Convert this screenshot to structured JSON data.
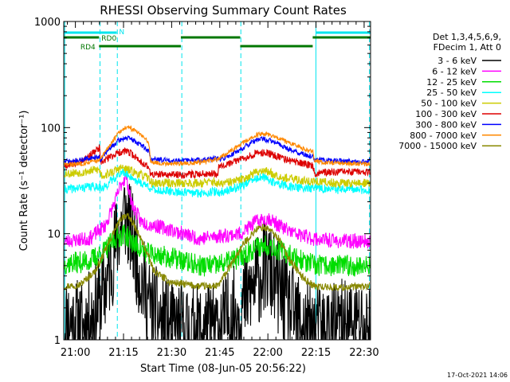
{
  "chart_data": {
    "type": "line",
    "title": "RHESSI Observing Summary Count Rates",
    "xlabel": "Start Time (08-Jun-05 20:56:22)",
    "ylabel": "Count Rate (s⁻¹ detector⁻¹)",
    "x_unit": "minutes after 20:56:22",
    "xlim": [
      0,
      95.63
    ],
    "ylim": [
      1,
      1000
    ],
    "yscale": "log",
    "x_ticks": [
      {
        "value": 3.63,
        "label": "21:00"
      },
      {
        "value": 18.63,
        "label": "21:15"
      },
      {
        "value": 33.63,
        "label": "21:30"
      },
      {
        "value": 48.63,
        "label": "21:45"
      },
      {
        "value": 63.63,
        "label": "22:00"
      },
      {
        "value": 78.63,
        "label": "22:15"
      },
      {
        "value": 93.63,
        "label": "22:30"
      }
    ],
    "y_ticks": [
      {
        "value": 1,
        "label": "1"
      },
      {
        "value": 10,
        "label": "10"
      },
      {
        "value": 100,
        "label": "100"
      },
      {
        "value": 1000,
        "label": "1000"
      }
    ],
    "legend": {
      "position": "right",
      "header": [
        "Det 1,3,4,5,6,9,",
        "FDecim 1, Att 0"
      ],
      "entries": [
        {
          "label": "3 - 6 keV",
          "color": "#000000"
        },
        {
          "label": "6 - 12 keV",
          "color": "#ff00ff"
        },
        {
          "label": "12 - 25 keV",
          "color": "#00dd00"
        },
        {
          "label": "25 - 50 keV",
          "color": "#00ffff"
        },
        {
          "label": "50 - 100 keV",
          "color": "#cccc00"
        },
        {
          "label": "100 - 300 keV",
          "color": "#dd0000"
        },
        {
          "label": "300 - 800 keV",
          "color": "#0000ff"
        },
        {
          "label": "800 - 7000 keV",
          "color": "#ff8800"
        },
        {
          "label": "7000 - 15000 keV",
          "color": "#888800"
        }
      ]
    },
    "series": [
      {
        "name": "3 - 6 keV",
        "color": "#000000",
        "noise": 0.65,
        "seed": 11,
        "points": [
          [
            0,
            1.6
          ],
          [
            6,
            1.3
          ],
          [
            11,
            2.2
          ],
          [
            14,
            4
          ],
          [
            17,
            10
          ],
          [
            19,
            16
          ],
          [
            21,
            10
          ],
          [
            24,
            4
          ],
          [
            27,
            2
          ],
          [
            33,
            1.3
          ],
          [
            40,
            1.2
          ],
          [
            48,
            1.3
          ],
          [
            55,
            2
          ],
          [
            60,
            3.5
          ],
          [
            63,
            5
          ],
          [
            66,
            3.5
          ],
          [
            70,
            2
          ],
          [
            75,
            1.3
          ],
          [
            79,
            1.2
          ],
          [
            85,
            1.3
          ],
          [
            90,
            1.4
          ],
          [
            95.6,
            1.3
          ]
        ]
      },
      {
        "name": "6 - 12 keV",
        "color": "#ff00ff",
        "noise": 0.1,
        "seed": 23,
        "points": [
          [
            0,
            8.5
          ],
          [
            8,
            9
          ],
          [
            13,
            12
          ],
          [
            16,
            20
          ],
          [
            18,
            30
          ],
          [
            19.5,
            35
          ],
          [
            21,
            20
          ],
          [
            24,
            13
          ],
          [
            28,
            12
          ],
          [
            33,
            11
          ],
          [
            42,
            9
          ],
          [
            48,
            9.5
          ],
          [
            55,
            10
          ],
          [
            60,
            13
          ],
          [
            64,
            14
          ],
          [
            67,
            12
          ],
          [
            72,
            10
          ],
          [
            78,
            9
          ],
          [
            85,
            8.5
          ],
          [
            95.6,
            8.5
          ]
        ]
      },
      {
        "name": "12 - 25 keV",
        "color": "#00dd00",
        "noise": 0.15,
        "seed": 37,
        "points": [
          [
            0,
            5.2
          ],
          [
            8,
            5.5
          ],
          [
            13,
            7
          ],
          [
            16,
            9
          ],
          [
            19,
            10
          ],
          [
            22,
            8
          ],
          [
            26,
            6.5
          ],
          [
            33,
            6
          ],
          [
            42,
            5
          ],
          [
            48,
            5
          ],
          [
            55,
            6
          ],
          [
            60,
            7.5
          ],
          [
            64,
            8
          ],
          [
            67,
            7
          ],
          [
            72,
            6
          ],
          [
            78,
            5
          ],
          [
            85,
            5
          ],
          [
            95.6,
            5
          ]
        ]
      },
      {
        "name": "25 - 50 keV",
        "color": "#00ffff",
        "noise": 0.06,
        "seed": 41,
        "points": [
          [
            0,
            26
          ],
          [
            10,
            28
          ],
          [
            11,
            28
          ],
          [
            12,
            26
          ],
          [
            14,
            30
          ],
          [
            16,
            34
          ],
          [
            18,
            38
          ],
          [
            20,
            36
          ],
          [
            23,
            31
          ],
          [
            26.5,
            28
          ],
          [
            27.5,
            26
          ],
          [
            33,
            25
          ],
          [
            42,
            24
          ],
          [
            47,
            25
          ],
          [
            48,
            24
          ],
          [
            55,
            28
          ],
          [
            60,
            33
          ],
          [
            62,
            34
          ],
          [
            66,
            30
          ],
          [
            70,
            28
          ],
          [
            74,
            27
          ],
          [
            78,
            27
          ],
          [
            85,
            26
          ],
          [
            95.6,
            26
          ]
        ]
      },
      {
        "name": "50 - 100 keV",
        "color": "#cccc00",
        "noise": 0.06,
        "seed": 53,
        "points": [
          [
            0,
            37
          ],
          [
            6,
            38
          ],
          [
            10,
            40
          ],
          [
            11,
            40
          ],
          [
            12,
            35
          ],
          [
            15,
            38
          ],
          [
            18,
            42
          ],
          [
            20,
            40
          ],
          [
            24,
            36
          ],
          [
            26.5,
            33
          ],
          [
            27.5,
            30
          ],
          [
            33,
            30
          ],
          [
            42,
            30
          ],
          [
            47,
            31
          ],
          [
            48,
            29
          ],
          [
            55,
            32
          ],
          [
            60,
            38
          ],
          [
            62,
            40
          ],
          [
            66,
            36
          ],
          [
            70,
            33
          ],
          [
            74,
            32
          ],
          [
            78,
            31
          ],
          [
            85,
            30
          ],
          [
            95.6,
            30
          ]
        ]
      },
      {
        "name": "100 - 300 keV",
        "color": "#dd0000",
        "noise": 0.05,
        "seed": 67,
        "points": [
          [
            0,
            44
          ],
          [
            3,
            46
          ],
          [
            6,
            50
          ],
          [
            9,
            57
          ],
          [
            11.2,
            64
          ],
          [
            11.4,
            46
          ],
          [
            14,
            52
          ],
          [
            17,
            58
          ],
          [
            19,
            60
          ],
          [
            21,
            57
          ],
          [
            24,
            48
          ],
          [
            26.5,
            42
          ],
          [
            27.1,
            36
          ],
          [
            30,
            36
          ],
          [
            33,
            36
          ],
          [
            38,
            36
          ],
          [
            44,
            37
          ],
          [
            48,
            37
          ],
          [
            48.4,
            44
          ],
          [
            52,
            46
          ],
          [
            56,
            52
          ],
          [
            60,
            57
          ],
          [
            62,
            58
          ],
          [
            64,
            57
          ],
          [
            67,
            53
          ],
          [
            70,
            49
          ],
          [
            73,
            47
          ],
          [
            75.5,
            45
          ],
          [
            77.7,
            44
          ],
          [
            78.1,
            37
          ],
          [
            82,
            38
          ],
          [
            88,
            38
          ],
          [
            95.6,
            38
          ]
        ]
      },
      {
        "name": "300 - 800 keV",
        "color": "#0000ff",
        "noise": 0.035,
        "seed": 71,
        "points": [
          [
            0,
            48
          ],
          [
            3,
            48
          ],
          [
            6,
            50
          ],
          [
            9,
            52
          ],
          [
            11.2,
            53
          ],
          [
            11.4,
            50
          ],
          [
            14,
            62
          ],
          [
            17,
            75
          ],
          [
            19,
            80
          ],
          [
            21,
            78
          ],
          [
            24,
            69
          ],
          [
            26.5,
            60
          ],
          [
            27.1,
            50
          ],
          [
            30,
            50
          ],
          [
            33,
            49
          ],
          [
            38,
            49
          ],
          [
            44,
            50
          ],
          [
            48,
            51
          ],
          [
            48.4,
            49
          ],
          [
            52,
            55
          ],
          [
            56,
            65
          ],
          [
            60,
            76
          ],
          [
            62,
            78
          ],
          [
            64,
            76
          ],
          [
            67,
            70
          ],
          [
            70,
            63
          ],
          [
            73,
            58
          ],
          [
            75.5,
            55
          ],
          [
            77.7,
            53
          ],
          [
            78.1,
            50
          ],
          [
            82,
            49
          ],
          [
            88,
            48
          ],
          [
            95.6,
            48
          ]
        ]
      },
      {
        "name": "800 - 7000 keV",
        "color": "#ff8800",
        "noise": 0.03,
        "seed": 83,
        "points": [
          [
            0,
            45
          ],
          [
            3,
            45
          ],
          [
            6,
            46
          ],
          [
            9,
            48
          ],
          [
            11.2,
            49
          ],
          [
            11.4,
            50
          ],
          [
            14,
            66
          ],
          [
            17,
            88
          ],
          [
            19,
            100
          ],
          [
            21,
            98
          ],
          [
            24,
            88
          ],
          [
            26.5,
            72
          ],
          [
            27.1,
            48
          ],
          [
            30,
            46
          ],
          [
            33,
            46
          ],
          [
            38,
            46
          ],
          [
            44,
            48
          ],
          [
            48,
            50
          ],
          [
            48.4,
            52
          ],
          [
            52,
            60
          ],
          [
            56,
            72
          ],
          [
            60,
            85
          ],
          [
            62,
            88
          ],
          [
            64,
            86
          ],
          [
            67,
            80
          ],
          [
            70,
            72
          ],
          [
            73,
            66
          ],
          [
            75.5,
            62
          ],
          [
            77.7,
            60
          ],
          [
            78.1,
            48
          ],
          [
            82,
            47
          ],
          [
            88,
            46
          ],
          [
            95.6,
            45
          ]
        ]
      },
      {
        "name": "7000 - 15000 keV",
        "color": "#888800",
        "noise": 0.05,
        "seed": 97,
        "points": [
          [
            0,
            3.2
          ],
          [
            5,
            3.3
          ],
          [
            10,
            4.5
          ],
          [
            13,
            7
          ],
          [
            16,
            11
          ],
          [
            18,
            14
          ],
          [
            19,
            15
          ],
          [
            21,
            13.5
          ],
          [
            24,
            9
          ],
          [
            26.5,
            6
          ],
          [
            28,
            4.5
          ],
          [
            33,
            3.5
          ],
          [
            42,
            3.2
          ],
          [
            48,
            3.2
          ],
          [
            52,
            5
          ],
          [
            56,
            8
          ],
          [
            60,
            11
          ],
          [
            62,
            11.5
          ],
          [
            64,
            11
          ],
          [
            67,
            9
          ],
          [
            70,
            6
          ],
          [
            74,
            4
          ],
          [
            78,
            3.2
          ],
          [
            85,
            3.1
          ],
          [
            95.6,
            3.2
          ]
        ]
      }
    ],
    "orbit_flags": {
      "bars": [
        {
          "label": "N",
          "color": "#00e5ee",
          "level": 1,
          "intervals": [
            [
              0,
              16.5
            ],
            [
              78.6,
              95.6
            ]
          ]
        },
        {
          "label": "RD0",
          "color": "#007700",
          "level": 2,
          "intervals": [
            [
              0,
              11
            ]
          ]
        },
        {
          "label": "",
          "color": "#007700",
          "level": 2,
          "intervals": [
            [
              36.5,
              55
            ],
            [
              77.6,
              95.6
            ]
          ]
        },
        {
          "label": "RD4",
          "color": "#007700",
          "level": 3,
          "intervals": [
            [
              11,
              36.5
            ],
            [
              55,
              77.6
            ]
          ]
        }
      ],
      "saa_or_night_lines": [
        {
          "x": 0.3,
          "style": "solid"
        },
        {
          "x": 11.3,
          "style": "dashed"
        },
        {
          "x": 16.7,
          "style": "dashed"
        },
        {
          "x": 36.8,
          "style": "dashed"
        },
        {
          "x": 55.2,
          "style": "dashed"
        },
        {
          "x": 78.6,
          "style": "solid"
        },
        {
          "x": 95.3,
          "style": "dashed"
        }
      ]
    }
  },
  "footer": {
    "timestamp": "17-Oct-2021 14:06"
  }
}
